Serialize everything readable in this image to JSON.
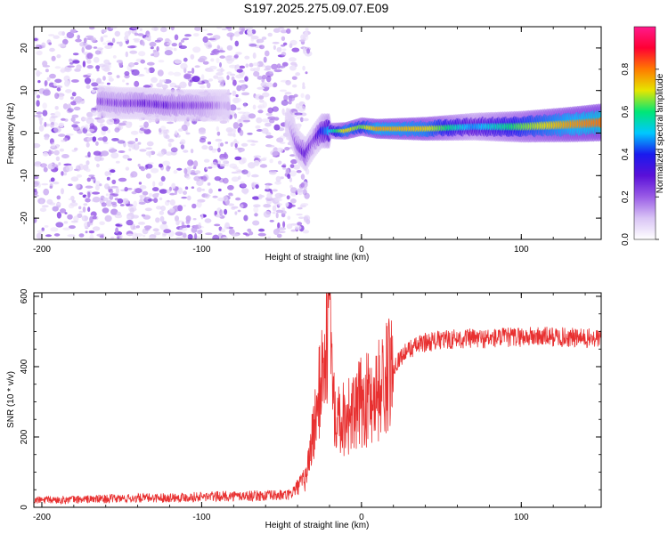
{
  "page": {
    "title": "S197.2025.275.09.07.E09"
  },
  "colors": {
    "snr_line": "#e83030",
    "colormap": [
      "#ffffff",
      "#d9c4f5",
      "#9a5ce6",
      "#5a10d8",
      "#1a1aee",
      "#00c8ff",
      "#00e676",
      "#e6e600",
      "#ff7a00",
      "#ff0033",
      "#ff1a8c"
    ]
  },
  "chart_data": [
    {
      "type": "heatmap",
      "title": "S197.2025.275.09.07.E09",
      "xlabel": "Height of straight line (km)",
      "ylabel": "Frequency (Hz)",
      "xlim": [
        -205,
        150
      ],
      "ylim": [
        -25,
        25
      ],
      "x_ticks": [
        -200,
        -100,
        0,
        100
      ],
      "x_tick_labels": [
        "-200",
        "-100",
        "0",
        "100"
      ],
      "y_ticks": [
        -20,
        -10,
        0,
        10,
        20
      ],
      "y_tick_labels": [
        "-20",
        "-10",
        "0",
        "10",
        "20"
      ],
      "colorbar": {
        "label": "Normalized spectral amplitude",
        "range": [
          0.0,
          1.0
        ],
        "ticks": [
          0.0,
          0.2,
          0.4,
          0.6,
          0.8
        ],
        "tick_labels": [
          "0.0",
          "0.2",
          "0.4",
          "0.6",
          "0.8"
        ]
      },
      "ridge": [
        {
          "x": -165,
          "f": 7.5,
          "amp": 0.25
        },
        {
          "x": -150,
          "f": 7.0,
          "amp": 0.25
        },
        {
          "x": -135,
          "f": 7.0,
          "amp": 0.3
        },
        {
          "x": -120,
          "f": 6.5,
          "amp": 0.3
        },
        {
          "x": -100,
          "f": 6.5,
          "amp": 0.25
        },
        {
          "x": -85,
          "f": 6.5,
          "amp": 0.15
        },
        {
          "x": -45,
          "f": 2.0,
          "amp": 0.12
        },
        {
          "x": -40,
          "f": -3.0,
          "amp": 0.25
        },
        {
          "x": -35,
          "f": -5.0,
          "amp": 0.35
        },
        {
          "x": -30,
          "f": -2.0,
          "amp": 0.25
        },
        {
          "x": -25,
          "f": 0.5,
          "amp": 0.45
        },
        {
          "x": -10,
          "f": 0.5,
          "amp": 0.85
        },
        {
          "x": 0,
          "f": 1.5,
          "amp": 0.75
        },
        {
          "x": 10,
          "f": 1.0,
          "amp": 0.9
        },
        {
          "x": 40,
          "f": 1.0,
          "amp": 0.85
        },
        {
          "x": 70,
          "f": 1.5,
          "amp": 0.55
        },
        {
          "x": 100,
          "f": 1.5,
          "amp": 0.75
        },
        {
          "x": 130,
          "f": 2.0,
          "amp": 0.9
        },
        {
          "x": 150,
          "f": 2.5,
          "amp": 0.95
        }
      ]
    },
    {
      "type": "line",
      "title": "",
      "xlabel": "Height of straight line (km)",
      "ylabel": "SNR (10 * v/v)",
      "xlim": [
        -205,
        150
      ],
      "ylim": [
        0,
        610
      ],
      "x_ticks": [
        -200,
        -100,
        0,
        100
      ],
      "x_tick_labels": [
        "-200",
        "-100",
        "0",
        "100"
      ],
      "y_ticks": [
        0,
        200,
        400,
        600
      ],
      "y_tick_labels": [
        "0",
        "200",
        "400",
        "600"
      ],
      "series": [
        {
          "name": "SNR",
          "x": [
            -205,
            -180,
            -150,
            -120,
            -100,
            -80,
            -60,
            -45,
            -35,
            -30,
            -27,
            -25,
            -22,
            -20,
            -18,
            -15,
            -12,
            -10,
            -5,
            0,
            5,
            10,
            15,
            20,
            25,
            30,
            40,
            50,
            60,
            80,
            100,
            120,
            140,
            150
          ],
          "values": [
            20,
            22,
            25,
            28,
            30,
            32,
            33,
            35,
            80,
            220,
            300,
            380,
            450,
            600,
            330,
            280,
            250,
            270,
            260,
            300,
            310,
            330,
            360,
            400,
            430,
            450,
            470,
            475,
            480,
            480,
            485,
            485,
            480,
            480
          ]
        }
      ]
    }
  ]
}
